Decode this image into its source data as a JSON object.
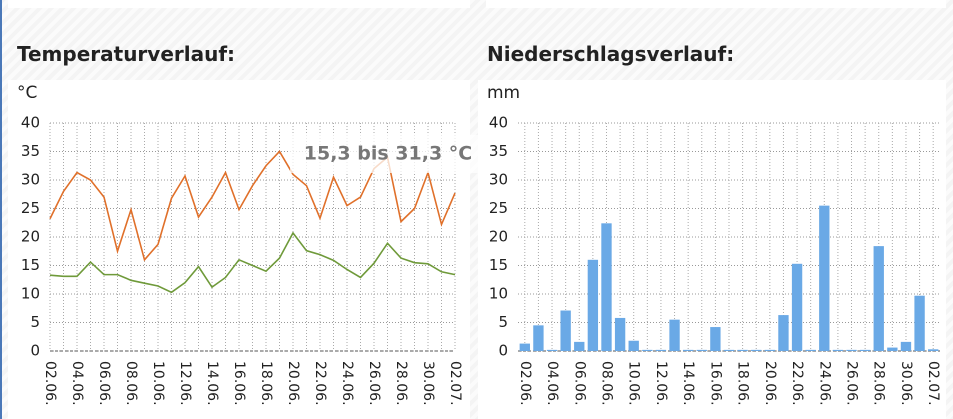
{
  "chart_data": [
    {
      "type": "line",
      "title": "Temperaturverlauf:",
      "y_label": "°C",
      "annotation": "15,3 bis 31,3 °C",
      "categories": [
        "02.06.",
        null,
        "04.06.",
        null,
        "06.06.",
        null,
        "08.06.",
        null,
        "10.06.",
        null,
        "12.06.",
        null,
        "14.06.",
        null,
        "16.06.",
        null,
        "18.06.",
        null,
        "20.06.",
        null,
        "22.06.",
        null,
        "24.06.",
        null,
        "26.06.",
        null,
        "28.06.",
        null,
        "30.06.",
        null,
        "02.07."
      ],
      "series": [
        {
          "color": "#e0702a",
          "values": [
            23.2,
            28,
            31.3,
            30,
            27,
            17.5,
            24.8,
            16,
            18.7,
            26.8,
            30.7,
            23.5,
            27,
            31.3,
            24.8,
            29,
            32.5,
            35,
            31,
            29,
            23.3,
            30.5,
            25.5,
            27,
            32,
            34,
            22.7,
            25,
            31.3,
            22.2,
            27.7
          ]
        },
        {
          "color": "#6f9a3a",
          "values": [
            13.3,
            13.1,
            13.1,
            15.6,
            13.4,
            13.4,
            12.4,
            11.9,
            11.4,
            10.3,
            12,
            14.8,
            11.2,
            12.9,
            16,
            15,
            14,
            16.3,
            20.7,
            17.6,
            16.9,
            15.9,
            14.3,
            12.9,
            15.4,
            18.9,
            16.3,
            15.5,
            15.3,
            13.9,
            13.4
          ]
        }
      ],
      "ylim": [
        0,
        40
      ],
      "yticks": [
        0,
        5,
        10,
        15,
        20,
        25,
        30,
        35,
        40
      ],
      "grid": true
    },
    {
      "type": "bar",
      "title": "Niederschlagsverlauf:",
      "y_label": "mm",
      "color": "#6aa9e6",
      "categories": [
        "02.06.",
        null,
        "04.06.",
        null,
        "06.06.",
        null,
        "08.06.",
        null,
        "10.06.",
        null,
        "12.06.",
        null,
        "14.06.",
        null,
        "16.06.",
        null,
        "18.06.",
        null,
        "20.06.",
        null,
        "22.06.",
        null,
        "24.06.",
        null,
        "26.06.",
        null,
        "28.06.",
        null,
        "30.06.",
        null,
        "02.07."
      ],
      "values": [
        1.3,
        4.5,
        0.2,
        7.1,
        1.6,
        16,
        22.4,
        5.8,
        1.8,
        0.2,
        0.2,
        5.5,
        0.2,
        0.2,
        4.2,
        0.2,
        0.2,
        0.2,
        0.2,
        6.3,
        15.3,
        0.2,
        25.5,
        0.2,
        0.2,
        0.2,
        18.4,
        0.6,
        1.6,
        9.7,
        0.3
      ],
      "ylim": [
        0,
        40
      ],
      "yticks": [
        0,
        5,
        10,
        15,
        20,
        25,
        30,
        35,
        40
      ],
      "grid": true
    }
  ]
}
